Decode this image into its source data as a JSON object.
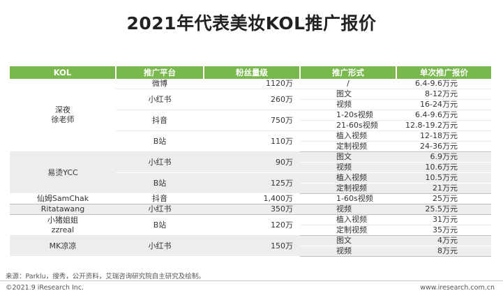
{
  "title": "2021年代表美妆KOL推广报价",
  "table": {
    "headers": [
      "KOL",
      "推广平台",
      "粉丝量级",
      "推广形式",
      "单次推广报价"
    ],
    "kols": [
      {
        "name": "深夜\n徐老师",
        "platforms": [
          {
            "name": "微博",
            "fans": "1120万",
            "formats": [
              {
                "form": "/",
                "price": "6.4-9.6万元"
              }
            ]
          },
          {
            "name": "小红书",
            "fans": "260万",
            "formats": [
              {
                "form": "图文",
                "price": "8-12万元"
              },
              {
                "form": "视频",
                "price": "16-24万元"
              }
            ]
          },
          {
            "name": "抖音",
            "fans": "750万",
            "formats": [
              {
                "form": "1-20s视频",
                "price": "6.4-9.6万元"
              },
              {
                "form": "21-60s视频",
                "price": "12.8-19.2万元"
              }
            ]
          },
          {
            "name": "B站",
            "fans": "110万",
            "formats": [
              {
                "form": "植入视频",
                "price": "12-18万元"
              },
              {
                "form": "定制视频",
                "price": "24-36万元"
              }
            ]
          }
        ]
      },
      {
        "name": "易烫YCC",
        "platforms": [
          {
            "name": "小红书",
            "fans": "90万",
            "formats": [
              {
                "form": "图文",
                "price": "6.9万元"
              },
              {
                "form": "视频",
                "price": "10.6万元"
              }
            ]
          },
          {
            "name": "B站",
            "fans": "125万",
            "formats": [
              {
                "form": "植入视频",
                "price": "10.5万元"
              },
              {
                "form": "定制视频",
                "price": "21万元"
              }
            ]
          }
        ]
      },
      {
        "name": "仙姆SamChak",
        "platforms": [
          {
            "name": "抖音",
            "fans": "1,400万",
            "formats": [
              {
                "form": "1-60s视频",
                "price": "25万元"
              }
            ]
          }
        ]
      },
      {
        "name": "Ritatawang",
        "platforms": [
          {
            "name": "小红书",
            "fans": "350万",
            "formats": [
              {
                "form": "视频",
                "price": "25.5万元"
              }
            ]
          }
        ]
      },
      {
        "name": "小猪姐姐\nzzreal",
        "platforms": [
          {
            "name": "B站",
            "fans": "120万",
            "formats": [
              {
                "form": "植入视频",
                "price": "31万元"
              },
              {
                "form": "定制视频",
                "price": "35万元"
              }
            ]
          }
        ]
      },
      {
        "name": "MK凉凉",
        "platforms": [
          {
            "name": "小红书",
            "fans": "150万",
            "formats": [
              {
                "form": "图文",
                "price": "4万元"
              },
              {
                "form": "视频",
                "price": "8万元"
              }
            ]
          }
        ]
      }
    ]
  },
  "source": "来源：Parklu，搜秀，公开资料，艾瑞咨询研究院自主研究及绘制。",
  "copyright": "©2021.9 iResearch Inc.",
  "website": "www.iresearch.com.cn"
}
